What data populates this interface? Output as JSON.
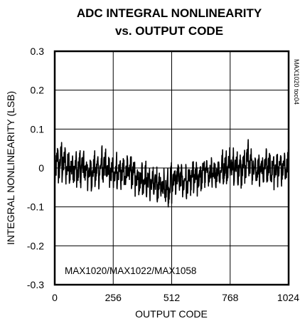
{
  "chart_data": {
    "type": "line",
    "title": "ADC INTEGRAL NONLINEARITY",
    "subtitle": "vs. OUTPUT CODE",
    "xlabel": "OUTPUT CODE",
    "ylabel": "INTEGRAL NONLINEARITY (LSB)",
    "xlim": [
      0,
      1024
    ],
    "ylim": [
      -0.3,
      0.3
    ],
    "xticks": [
      0,
      256,
      512,
      768,
      1024
    ],
    "yticks": [
      0.3,
      0.2,
      0.1,
      0,
      -0.1,
      -0.2,
      -0.3
    ],
    "xtick_labels": [
      "0",
      "256",
      "512",
      "768",
      "1024"
    ],
    "ytick_labels": [
      "0.3",
      "0.2",
      "0.1",
      "0",
      "-0.1",
      "-0.2",
      "-0.3"
    ],
    "grid": true,
    "annotation": "MAX1020/MAX1022/MAX1058",
    "figure_code": "MAX1020 toc04",
    "series": [
      {
        "x": [
          0,
          16,
          32,
          48,
          64,
          80,
          96,
          112,
          128,
          144,
          160,
          176,
          192,
          208,
          224,
          240,
          256,
          272,
          288,
          304,
          320,
          336,
          352,
          368,
          384,
          400,
          416,
          432,
          448,
          464,
          480,
          496,
          512,
          528,
          544,
          560,
          576,
          592,
          608,
          624,
          640,
          656,
          672,
          688,
          704,
          720,
          736,
          752,
          768,
          784,
          800,
          816,
          832,
          848,
          864,
          880,
          896,
          912,
          928,
          944,
          960,
          976,
          992,
          1008,
          1024
        ],
        "y": [
          0.01,
          0.015,
          0.02,
          0.01,
          0.005,
          0.0,
          -0.005,
          0.0,
          0.005,
          -0.01,
          -0.01,
          -0.005,
          0.0,
          0.005,
          0.0,
          -0.01,
          -0.01,
          -0.005,
          -0.01,
          -0.015,
          -0.01,
          -0.005,
          -0.02,
          -0.02,
          -0.025,
          -0.03,
          -0.035,
          -0.04,
          -0.04,
          -0.045,
          -0.05,
          -0.045,
          -0.035,
          -0.025,
          -0.02,
          -0.03,
          -0.035,
          -0.03,
          -0.02,
          -0.025,
          -0.015,
          -0.005,
          -0.01,
          -0.02,
          -0.01,
          -0.005,
          0.0,
          0.005,
          0.01,
          0.015,
          0.0,
          -0.005,
          0.01,
          0.02,
          0.01,
          0.005,
          -0.01,
          0.0,
          0.005,
          0.0,
          -0.005,
          0.005,
          0.0,
          0.0,
          0.005
        ],
        "band": [
          0.06,
          0.055,
          0.055,
          0.05,
          0.05,
          0.045,
          0.045,
          0.05,
          0.05,
          0.045,
          0.045,
          0.045,
          0.05,
          0.05,
          0.045,
          0.045,
          0.045,
          0.045,
          0.045,
          0.045,
          0.045,
          0.045,
          0.045,
          0.045,
          0.045,
          0.045,
          0.045,
          0.045,
          0.045,
          0.045,
          0.05,
          0.05,
          0.05,
          0.05,
          0.045,
          0.045,
          0.045,
          0.045,
          0.045,
          0.045,
          0.045,
          0.045,
          0.045,
          0.045,
          0.045,
          0.045,
          0.045,
          0.045,
          0.05,
          0.05,
          0.045,
          0.045,
          0.05,
          0.05,
          0.045,
          0.045,
          0.045,
          0.045,
          0.045,
          0.045,
          0.045,
          0.045,
          0.045,
          0.045,
          0.045
        ]
      }
    ]
  },
  "colors": {
    "trace": "#000000",
    "axis": "#000000",
    "grid": "#000000",
    "background": "#ffffff"
  }
}
